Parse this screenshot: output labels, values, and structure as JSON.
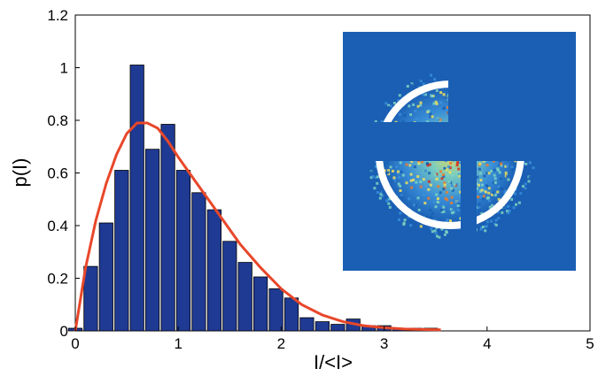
{
  "chart_data": {
    "type": "bar",
    "title": "",
    "xlabel": "I/<I>",
    "ylabel": "p(I)",
    "xlim": [
      0,
      5
    ],
    "ylim": [
      0,
      1.2
    ],
    "x_ticks": [
      "0",
      "1",
      "2",
      "3",
      "4",
      "5"
    ],
    "y_ticks": [
      "0",
      "0.2",
      "0.4",
      "0.6",
      "0.8",
      "1",
      "1.2"
    ],
    "grid": false,
    "bar_color": "#1f3a93",
    "curve_color": "#e8472a",
    "bins": {
      "x": [
        0,
        0.15,
        0.3,
        0.45,
        0.6,
        0.75,
        0.9,
        1.05,
        1.2,
        1.35,
        1.5,
        1.65,
        1.8,
        1.95,
        2.1,
        2.25,
        2.4,
        2.55,
        2.7,
        2.85,
        3.0,
        3.15,
        3.3,
        3.45
      ],
      "values": [
        0.01,
        0.245,
        0.41,
        0.61,
        1.01,
        0.69,
        0.785,
        0.61,
        0.525,
        0.46,
        0.34,
        0.26,
        0.205,
        0.16,
        0.125,
        0.05,
        0.035,
        0.025,
        0.045,
        0.02,
        0.02,
        0.01,
        0.01,
        0.01
      ]
    },
    "fit_curve": {
      "x": [
        0,
        0.1,
        0.2,
        0.3,
        0.4,
        0.5,
        0.6,
        0.7,
        0.8,
        0.9,
        1.0,
        1.2,
        1.4,
        1.6,
        1.8,
        2.0,
        2.2,
        2.4,
        2.6,
        2.8,
        3.0,
        3.2,
        3.4,
        3.55
      ],
      "y": [
        0.0,
        0.24,
        0.42,
        0.56,
        0.67,
        0.75,
        0.79,
        0.79,
        0.77,
        0.72,
        0.66,
        0.55,
        0.44,
        0.33,
        0.24,
        0.16,
        0.1,
        0.06,
        0.035,
        0.02,
        0.012,
        0.007,
        0.005,
        0.004
      ]
    },
    "inset": {
      "type": "image",
      "description_colors": [
        "#1a5fb4",
        "#3a8fd8",
        "#7fd3c0",
        "#f2e05a",
        "#f07a2a",
        "#d62a1a"
      ]
    }
  }
}
